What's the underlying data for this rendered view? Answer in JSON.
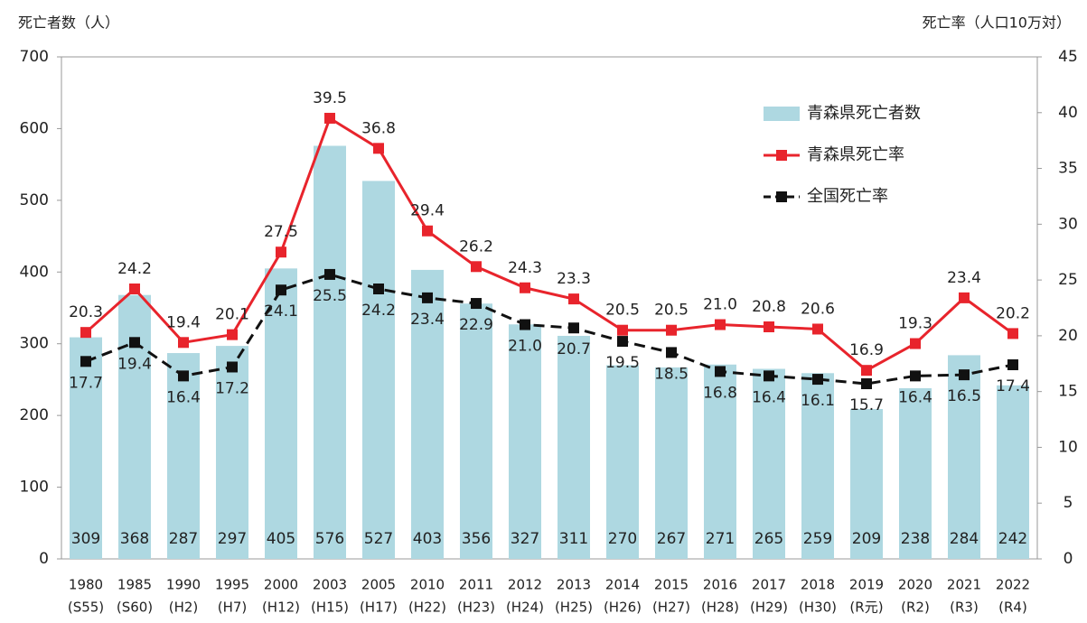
{
  "chart_data": {
    "type": "bar",
    "y_title": "死亡者数（人）",
    "y2_title": "死亡率（人口10万対）",
    "categories": [
      "1980",
      "1985",
      "1990",
      "1995",
      "2000",
      "2003",
      "2005",
      "2010",
      "2011",
      "2012",
      "2013",
      "2014",
      "2015",
      "2016",
      "2017",
      "2018",
      "2019",
      "2020",
      "2021",
      "2022"
    ],
    "category_sublabels": [
      "(S55)",
      "(S60)",
      "(H2)",
      "(H7)",
      "(H12)",
      "(H15)",
      "(H17)",
      "(H22)",
      "(H23)",
      "(H24)",
      "(H25)",
      "(H26)",
      "(H27)",
      "(H28)",
      "(H29)",
      "(H30)",
      "(R元)",
      "(R2)",
      "(R3)",
      "(R4)"
    ],
    "series": [
      {
        "name": "青森県死亡者数",
        "type": "bar",
        "color": "#aed8e1",
        "axis": "y",
        "values": [
          309,
          368,
          287,
          297,
          405,
          576,
          527,
          403,
          356,
          327,
          311,
          270,
          267,
          271,
          265,
          259,
          209,
          238,
          284,
          242
        ]
      },
      {
        "name": "青森県死亡率",
        "type": "line",
        "color": "#e8242c",
        "axis": "y2",
        "dash": false,
        "label_pos": "above",
        "values": [
          20.3,
          24.2,
          19.4,
          20.1,
          27.5,
          39.5,
          36.8,
          29.4,
          26.2,
          24.3,
          23.3,
          20.5,
          20.5,
          21.0,
          20.8,
          20.6,
          16.9,
          19.3,
          23.4,
          20.2
        ],
        "value_labels": [
          "20.3",
          "24.2",
          "19.4",
          "20.1",
          "27.5",
          "39.5",
          "36.8",
          "29.4",
          "26.2",
          "24.3",
          "23.3",
          "20.5",
          "20.5",
          "21.0",
          "20.8",
          "20.6",
          "16.9",
          "19.3",
          "23.4",
          "20.2"
        ]
      },
      {
        "name": "全国死亡率",
        "type": "line",
        "color": "#111111",
        "axis": "y2",
        "dash": true,
        "label_pos": "below",
        "values": [
          17.7,
          19.4,
          16.4,
          17.2,
          24.1,
          25.5,
          24.2,
          23.4,
          22.9,
          21.0,
          20.7,
          19.5,
          18.5,
          16.8,
          16.4,
          16.1,
          15.7,
          16.4,
          16.5,
          17.4
        ],
        "value_labels": [
          "17.7",
          "19.4",
          "16.4",
          "17.2",
          "24.1",
          "25.5",
          "24.2",
          "23.4",
          "22.9",
          "21.0",
          "20.7",
          "19.5",
          "18.5",
          "16.8",
          "16.4",
          "16.1",
          "15.7",
          "16.4",
          "16.5",
          "17.4"
        ]
      }
    ],
    "ylim": [
      0,
      700
    ],
    "yticks": [
      0,
      100,
      200,
      300,
      400,
      500,
      600,
      700
    ],
    "y2lim": [
      0,
      45
    ],
    "y2ticks": [
      0,
      5,
      10,
      15,
      20,
      25,
      30,
      35,
      40,
      45
    ],
    "legend": "upper right"
  }
}
